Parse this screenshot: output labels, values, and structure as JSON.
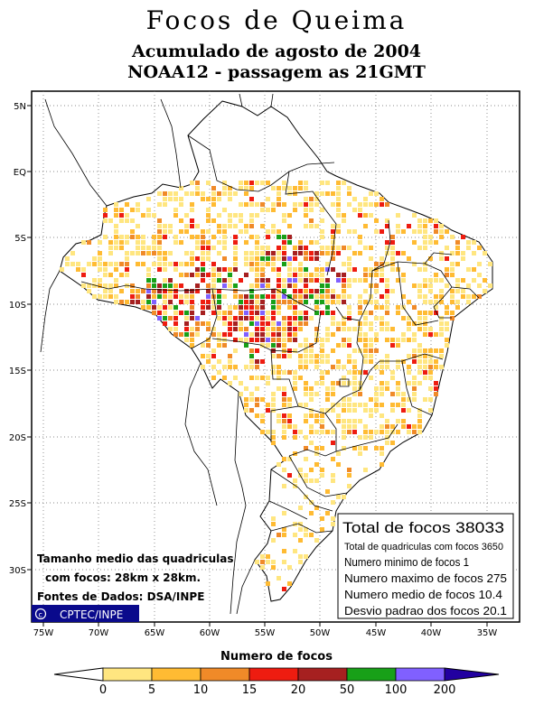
{
  "title": "Focos de Queima",
  "subtitle1": "Acumulado de agosto de 2004",
  "subtitle2": "NOAA12 - passagem as 21GMT",
  "lat_labels": [
    "5N",
    "EQ",
    "5S",
    "10S",
    "15S",
    "20S",
    "25S",
    "30S"
  ],
  "lon_labels": [
    "75W",
    "70W",
    "65W",
    "60W",
    "55W",
    "50W",
    "45W",
    "40W",
    "35W"
  ],
  "info_left": {
    "line1": "Tamanho medio das quadriculas",
    "line2": "com focos: 28km x 28km.",
    "line3": "Fontes de Dados: DSA/INPE",
    "logo": "CPTEC/INPE"
  },
  "stats": {
    "total": "Total de focos 38033",
    "quadriculas": "Total de quadriculas com focos 3650",
    "minimo": "Numero minimo de focos 1",
    "maximo": "Numero maximo de focos 275",
    "medio": "Numero medio de focos 10.4",
    "desvio": "Desvio padrao dos focos 20.1"
  },
  "legend": {
    "label": "Numero de focos",
    "ticks": [
      "0",
      "5",
      "10",
      "15",
      "20",
      "50",
      "100",
      "200"
    ],
    "colors": [
      "#ffe680",
      "#ffbb33",
      "#f08a28",
      "#ee1c10",
      "#a62020",
      "#18a018",
      "#8060ff",
      "#2200a0"
    ]
  }
}
